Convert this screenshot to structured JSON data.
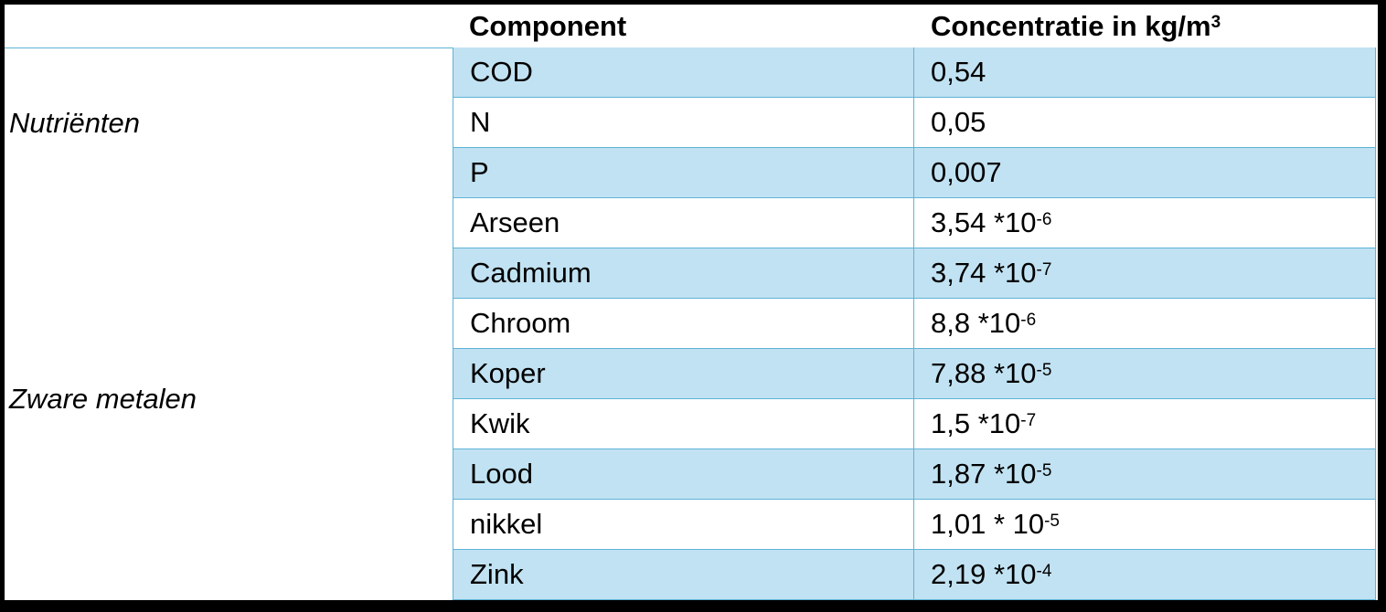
{
  "header": {
    "columns": [
      "Component",
      {
        "text": "Concentratie in kg/m",
        "sup": "3"
      }
    ]
  },
  "groups": [
    {
      "label": "Nutriënten",
      "rows": [
        {
          "component": "COD",
          "value": {
            "base": "0,54"
          }
        },
        {
          "component": "N",
          "value": {
            "base": "0,05"
          }
        },
        {
          "component": "P",
          "value": {
            "base": "0,007"
          }
        }
      ]
    },
    {
      "label": "Zware metalen",
      "rows": [
        {
          "component": "Arseen",
          "value": {
            "base": "3,54 *10",
            "exp": "-6"
          }
        },
        {
          "component": "Cadmium",
          "value": {
            "base": "3,74 *10",
            "exp": "-7"
          }
        },
        {
          "component": "Chroom",
          "value": {
            "base": "8,8 *10",
            "exp": "-6"
          }
        },
        {
          "component": "Koper",
          "value": {
            "base": "7,88 *10",
            "exp": "-5"
          }
        },
        {
          "component": "Kwik",
          "value": {
            "base": "1,5 *10",
            "exp": "-7"
          }
        },
        {
          "component": "Lood",
          "value": {
            "base": "1,87 *10",
            "exp": "-5"
          }
        },
        {
          "component": "nikkel",
          "value": {
            "base": "1,01 * 10",
            "exp": "-5"
          }
        },
        {
          "component": "Zink",
          "value": {
            "base": "2,19 *10",
            "exp": "-4"
          }
        }
      ]
    }
  ]
}
